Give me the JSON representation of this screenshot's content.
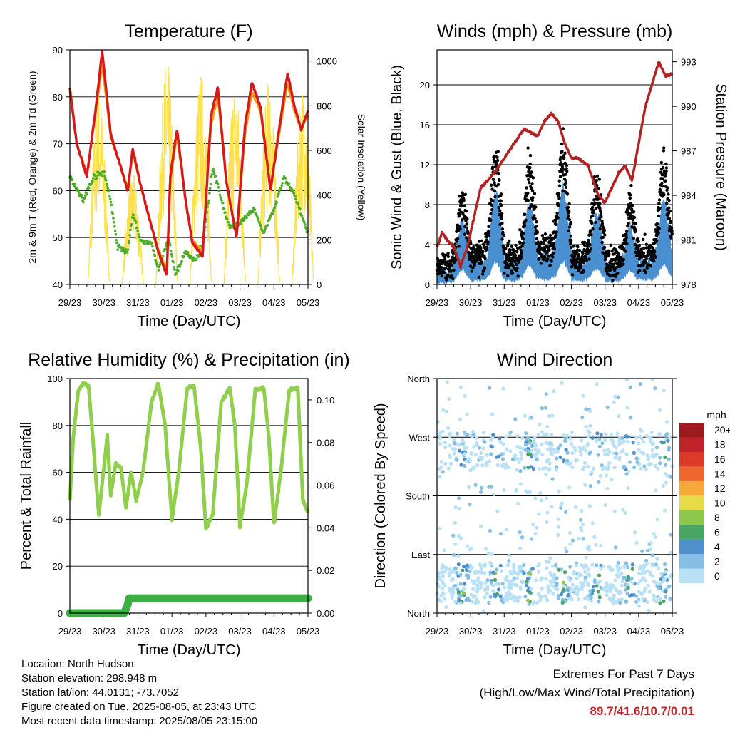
{
  "chart_data": [
    {
      "type": "line",
      "title": "Temperature (F)",
      "xlabel": "Time (Day/UTC)",
      "ylabel": "2m & 9m T (Red, Orange) & 2m Td (Green)",
      "ylabel_right": "Solar Insolation (Yellow)",
      "ylim": [
        40,
        90
      ],
      "ylim_right": [
        0,
        1050
      ],
      "yticks": [
        40,
        50,
        60,
        70,
        80,
        90
      ],
      "yticks_right": [
        0,
        200,
        400,
        600,
        800,
        1000
      ],
      "xlim": [
        0,
        7
      ],
      "x_ticks": [
        "29/23",
        "30/23",
        "31/23",
        "01/23",
        "02/23",
        "03/23",
        "04/23",
        "05/23"
      ],
      "series": [
        {
          "name": "2m T",
          "color": "#d7191c",
          "x": [
            0,
            0.2,
            0.5,
            0.75,
            0.95,
            1.2,
            1.5,
            1.7,
            1.85,
            2.05,
            2.3,
            2.6,
            2.85,
            2.95,
            3.15,
            3.4,
            3.6,
            3.9,
            4.15,
            4.35,
            4.6,
            4.9,
            5.15,
            5.35,
            5.6,
            5.9,
            6.15,
            6.4,
            6.6,
            6.8,
            7.0
          ],
          "y": [
            82,
            70,
            63,
            77,
            89.7,
            72,
            65,
            60,
            69,
            62,
            55,
            47,
            42,
            63,
            73,
            58,
            49,
            46,
            76,
            82,
            62,
            50,
            74,
            83,
            78,
            60,
            73,
            85,
            78,
            73,
            77
          ]
        },
        {
          "name": "9m T",
          "color": "#f39c12",
          "x": [
            0,
            0.2,
            0.5,
            0.75,
            0.95,
            1.2,
            1.5,
            1.7,
            1.85,
            2.05,
            2.3,
            2.6,
            2.85,
            2.95,
            3.15,
            3.4,
            3.6,
            3.9,
            4.15,
            4.35,
            4.6,
            4.9,
            5.15,
            5.35,
            5.6,
            5.9,
            6.15,
            6.4,
            6.6,
            6.8,
            7.0
          ],
          "y": [
            81,
            70,
            63.5,
            76,
            87,
            71.5,
            65,
            60.5,
            68,
            62,
            55,
            47.5,
            43,
            62,
            72,
            58,
            49.5,
            47,
            74,
            80,
            62,
            50.5,
            72,
            81,
            77,
            60.5,
            72,
            83,
            77,
            73,
            76
          ]
        },
        {
          "name": "2m Td",
          "color": "#4dac26",
          "x": [
            0,
            0.4,
            0.7,
            1.0,
            1.2,
            1.4,
            1.7,
            1.85,
            2.1,
            2.4,
            2.6,
            2.9,
            3.1,
            3.4,
            3.7,
            3.9,
            4.2,
            4.5,
            4.7,
            5.0,
            5.4,
            5.7,
            6.0,
            6.3,
            6.6,
            6.8,
            7.0
          ],
          "y": [
            63,
            58,
            63,
            64,
            58,
            48,
            47,
            55,
            49,
            49,
            43,
            50,
            42,
            47,
            45,
            48,
            65,
            57,
            52,
            53,
            56,
            51,
            56,
            63,
            59,
            55,
            51
          ]
        },
        {
          "name": "Solar Insolation",
          "color": "#fee04a",
          "axis": "right",
          "peaks": [
            {
              "day": 0.85,
              "value": 880
            },
            {
              "day": 1.85,
              "value": 500
            },
            {
              "day": 2.85,
              "value": 1010
            },
            {
              "day": 3.85,
              "value": 960
            },
            {
              "day": 4.85,
              "value": 920
            },
            {
              "day": 5.85,
              "value": 930
            },
            {
              "day": 6.85,
              "value": 900
            }
          ]
        }
      ]
    },
    {
      "type": "scatter",
      "title": "Winds (mph) & Pressure (mb)",
      "xlabel": "Time (Day/UTC)",
      "ylabel": "Sonic Wind & Gust (Blue, Black)",
      "ylabel_right": "Station Pressure (Maroon)",
      "ylim": [
        0,
        23.5
      ],
      "ylim_right": [
        978,
        993.8
      ],
      "yticks": [
        0,
        4,
        8,
        12,
        16,
        20
      ],
      "yticks_right": [
        978,
        981,
        984,
        987,
        990,
        993
      ],
      "xlim": [
        0,
        7
      ],
      "x_ticks": [
        "29/23",
        "30/23",
        "31/23",
        "01/23",
        "02/23",
        "03/23",
        "04/23",
        "05/23"
      ],
      "series": [
        {
          "name": "Sonic Wind",
          "color": "#4a90d0"
        },
        {
          "name": "Gust",
          "color": "#000000"
        },
        {
          "name": "Station Pressure",
          "color": "#b22222",
          "axis": "right",
          "x": [
            0,
            0.15,
            0.3,
            0.5,
            0.7,
            0.9,
            1.1,
            1.3,
            1.5,
            1.7,
            2.0,
            2.3,
            2.6,
            2.8,
            3.0,
            3.2,
            3.4,
            3.6,
            3.8,
            4.0,
            4.2,
            4.5,
            4.8,
            5.0,
            5.2,
            5.4,
            5.6,
            5.8,
            6.0,
            6.2,
            6.4,
            6.6,
            6.8,
            7.0
          ],
          "y": [
            980.5,
            981.5,
            981,
            980.5,
            979.2,
            980.5,
            982.5,
            984.5,
            985,
            985.5,
            986.5,
            987.5,
            988.5,
            988.2,
            988,
            989,
            989.5,
            989,
            987.5,
            986.5,
            986.5,
            986,
            984,
            983.5,
            984.5,
            985.5,
            986,
            985,
            987.5,
            990,
            991.5,
            993,
            992,
            992.2
          ]
        }
      ]
    },
    {
      "type": "line",
      "title": "Relative Humidity (%) & Precipitation (in)",
      "xlabel": "Time (Day/UTC)",
      "ylabel": "Percent & Total Rainfall",
      "ylim": [
        0,
        100
      ],
      "ylim_right": [
        0,
        0.11
      ],
      "yticks": [
        0,
        20,
        40,
        60,
        80,
        100
      ],
      "yticks_right": [
        "0.00",
        "0.02",
        "0.04",
        "0.06",
        "0.08",
        "0.10"
      ],
      "xlim": [
        0,
        7
      ],
      "x_ticks": [
        "29/23",
        "30/23",
        "31/23",
        "01/23",
        "02/23",
        "03/23",
        "04/23",
        "05/23"
      ],
      "series": [
        {
          "name": "Relative Humidity",
          "color": "#8fcf4b",
          "x": [
            0,
            0.1,
            0.25,
            0.4,
            0.55,
            0.7,
            0.85,
            1.0,
            1.1,
            1.2,
            1.35,
            1.5,
            1.65,
            1.8,
            1.95,
            2.15,
            2.4,
            2.6,
            2.8,
            3.0,
            3.2,
            3.45,
            3.65,
            3.85,
            4.0,
            4.2,
            4.45,
            4.7,
            4.85,
            5.0,
            5.2,
            5.45,
            5.7,
            5.85,
            6.0,
            6.2,
            6.45,
            6.7,
            6.85,
            7.0
          ],
          "y": [
            48,
            75,
            95,
            98,
            97,
            70,
            42,
            62,
            76,
            50,
            64,
            62,
            45,
            60,
            48,
            60,
            90,
            98,
            80,
            40,
            60,
            96,
            97,
            70,
            36,
            42,
            90,
            96,
            80,
            37,
            55,
            95,
            96,
            75,
            38,
            60,
            95,
            96,
            48,
            43
          ]
        },
        {
          "name": "Total Precipitation",
          "color": "#3cb043",
          "axis": "right",
          "x": [
            0,
            1.6,
            1.7,
            1.75,
            7.0
          ],
          "y": [
            0.0,
            0.0,
            0.004,
            0.007,
            0.007
          ]
        }
      ]
    },
    {
      "type": "scatter",
      "title": "Wind Direction",
      "xlabel": "Time (Day/UTC)",
      "ylabel": "Direction (Colored By Speed)",
      "yticks": [
        "North",
        "East",
        "South",
        "West",
        "North"
      ],
      "xlim": [
        0,
        7
      ],
      "x_ticks": [
        "29/23",
        "30/23",
        "31/23",
        "01/23",
        "02/23",
        "03/23",
        "04/23",
        "05/23"
      ],
      "colorbar": {
        "label": "mph",
        "levels": [
          "0",
          "2",
          "4",
          "6",
          "8",
          "10",
          "12",
          "14",
          "16",
          "18",
          "20+"
        ],
        "colors": [
          "#b8e1f5",
          "#85bfe6",
          "#4f8fca",
          "#4aa564",
          "#8cc84b",
          "#e6dc48",
          "#f6a838",
          "#ef6730",
          "#dd3a2c",
          "#c0242a",
          "#9b1b1e"
        ]
      }
    }
  ],
  "info": {
    "location": "Location: North Hudson",
    "elevation": "Station elevation: 298.948 m",
    "latlon": "Station lat/lon: 44.0131; -73.7052",
    "created": "Figure created on Tue, 2025-08-05, at 23:43 UTC",
    "latest": "Most recent data timestamp: 2025/08/05 23:15:00"
  },
  "extremes": {
    "title": "Extremes For Past 7 Days",
    "subtitle": "(High/Low/Max Wind/Total Precipitation)",
    "values": "89.7/41.6/10.7/0.01"
  }
}
